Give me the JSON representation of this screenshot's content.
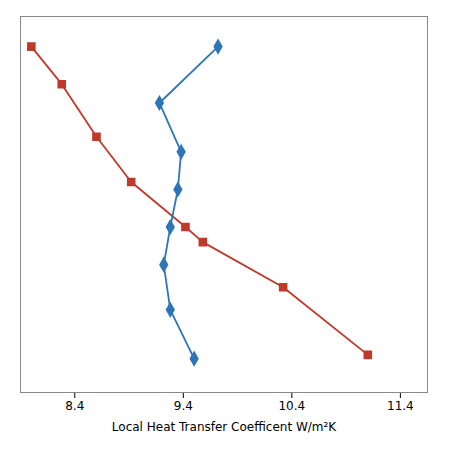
{
  "chart_data": {
    "type": "line",
    "xlabel": "Local Heat Transfer Coefficent W/m²K",
    "series": [
      {
        "color": "#C0392B",
        "marker": "square",
        "x": [
          8.0,
          8.28,
          8.6,
          8.92,
          9.42,
          9.58,
          10.32,
          11.1
        ],
        "values": [
          0.92,
          0.82,
          0.68,
          0.56,
          0.44,
          0.4,
          0.28,
          0.1
        ]
      },
      {
        "color": "#2E75B6",
        "marker": "diamond",
        "x": [
          9.72,
          9.18,
          9.38,
          9.35,
          9.28,
          9.22,
          9.28,
          9.5
        ],
        "values": [
          0.92,
          0.77,
          0.64,
          0.54,
          0.44,
          0.34,
          0.22,
          0.09
        ]
      }
    ],
    "xlim": [
      7.9,
      11.65
    ],
    "xticks": [
      8.4,
      9.4,
      10.4,
      11.4
    ],
    "ylim": [
      0.0,
      1.0
    ],
    "yticks": [],
    "tick_labels": "x"
  }
}
